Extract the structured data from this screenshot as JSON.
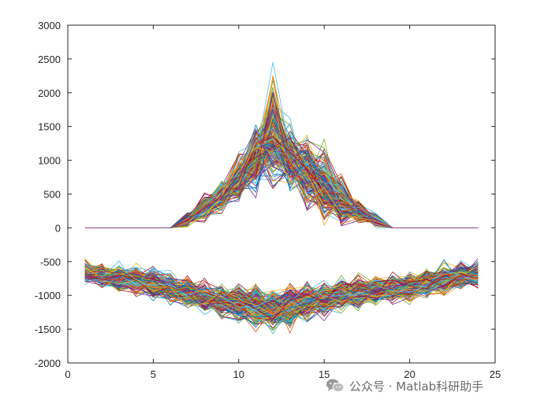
{
  "chart_data": {
    "type": "line",
    "title": "",
    "xlabel": "",
    "ylabel": "",
    "xlim": [
      0,
      25
    ],
    "ylim": [
      -2000,
      3000
    ],
    "xticks": [
      0,
      5,
      10,
      15,
      20,
      25
    ],
    "yticks": [
      -2000,
      -1500,
      -1000,
      -500,
      0,
      500,
      1000,
      1500,
      2000,
      2500,
      3000
    ],
    "xtick_labels": [
      "0",
      "5",
      "10",
      "15",
      "20",
      "25"
    ],
    "ytick_labels": [
      "-2000",
      "-1500",
      "-1000",
      "-500",
      "0",
      "500",
      "1000",
      "1500",
      "2000",
      "2500",
      "3000"
    ],
    "x": [
      1,
      2,
      3,
      4,
      5,
      6,
      7,
      8,
      9,
      10,
      11,
      12,
      13,
      14,
      15,
      16,
      17,
      18,
      19,
      20,
      21,
      22,
      23,
      24
    ],
    "series_groups": [
      {
        "group": "upper",
        "line_count": 200,
        "mean_values": [
          0,
          0,
          0,
          0,
          0,
          0,
          120,
          300,
          480,
          720,
          1050,
          1350,
          1020,
          820,
          620,
          400,
          250,
          120,
          0,
          0,
          0,
          0,
          0,
          0
        ],
        "peak_values": [
          0,
          0,
          0,
          0,
          0,
          0,
          300,
          620,
          920,
          1350,
          2050,
          2880,
          2000,
          1800,
          1600,
          1100,
          550,
          300,
          0,
          0,
          0,
          0,
          0,
          0
        ]
      },
      {
        "group": "lower",
        "line_count": 200,
        "mean_values": [
          -650,
          -700,
          -750,
          -780,
          -820,
          -880,
          -960,
          -1020,
          -1080,
          -1120,
          -1160,
          -1200,
          -1150,
          -1100,
          -1040,
          -980,
          -950,
          -920,
          -900,
          -880,
          -820,
          -760,
          -710,
          -680
        ],
        "min_values": [
          -1000,
          -1080,
          -1150,
          -1200,
          -1250,
          -1350,
          -1420,
          -1450,
          -1500,
          -1600,
          -1750,
          -1800,
          -1650,
          -1580,
          -1500,
          -1450,
          -1400,
          -1350,
          -1300,
          -1300,
          -1200,
          -1150,
          -1080,
          -1050
        ],
        "max_values": [
          -350,
          -380,
          -420,
          -430,
          -450,
          -520,
          -560,
          -580,
          -580,
          -560,
          -560,
          -600,
          -560,
          -560,
          -560,
          -560,
          -560,
          -540,
          -520,
          -500,
          -440,
          -380,
          -360,
          -340
        ]
      }
    ],
    "colors": [
      "#0072BD",
      "#D95319",
      "#EDB120",
      "#7E2F8E",
      "#77AC30",
      "#4DBEEE",
      "#A2142F"
    ],
    "grid": false,
    "legend": "none",
    "axes_color": "#262626"
  },
  "watermark": {
    "text": "公众号 · Matlab科研助手",
    "icon": "wechat-icon"
  }
}
